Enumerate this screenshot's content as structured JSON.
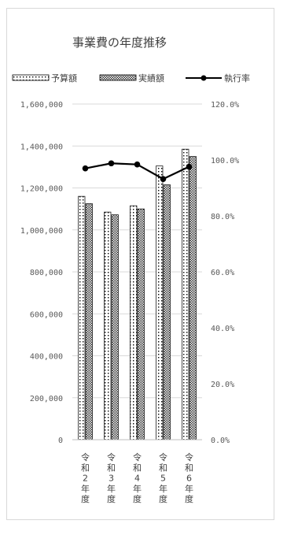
{
  "chart_data": {
    "type": "bar",
    "title": "事業費の年度推移",
    "categories": [
      "令和2年度",
      "令和3年度",
      "令和4年度",
      "令和5年度",
      "令和6年度"
    ],
    "series": [
      {
        "name": "予算額",
        "type": "bar",
        "axis": "left",
        "pattern": "dots",
        "values": [
          1160000,
          1085000,
          1115000,
          1305000,
          1385000
        ]
      },
      {
        "name": "実績額",
        "type": "bar",
        "axis": "left",
        "pattern": "crosshatch",
        "values": [
          1125000,
          1072000,
          1100000,
          1215000,
          1350000
        ]
      },
      {
        "name": "執行率",
        "type": "line",
        "axis": "right",
        "values": [
          97.0,
          98.8,
          98.4,
          93.2,
          97.6
        ]
      }
    ],
    "y_left": {
      "min": 0,
      "max": 1600000,
      "step": 200000,
      "tick_labels": [
        "0",
        "200,000",
        "400,000",
        "600,000",
        "800,000",
        "1,000,000",
        "1,200,000",
        "1,400,000",
        "1,600,000"
      ]
    },
    "y_right": {
      "min": 0,
      "max": 120,
      "step": 20,
      "tick_labels": [
        "0.0%",
        "20.0%",
        "40.0%",
        "60.0%",
        "80.0%",
        "100.0%",
        "120.0%"
      ]
    },
    "grid": true,
    "legend": "top",
    "colors": {
      "text": "#404040",
      "axis": "#bfbfbf",
      "grid": "#d9d9d9",
      "line": "#000000",
      "bar_fill": "#ffffff",
      "bar_mark": "#000000"
    }
  }
}
